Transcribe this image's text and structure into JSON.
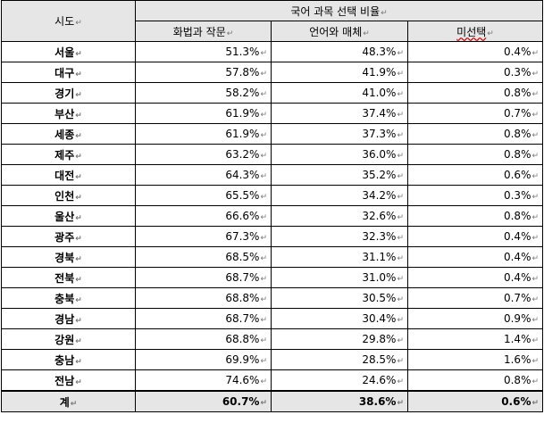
{
  "header": {
    "region": "시도",
    "group": "국어 과목 선택 비율",
    "cols": [
      "화법과 작문",
      "언어와 매체",
      "미선택"
    ]
  },
  "rows": [
    {
      "region": "서울",
      "a": "51.3%",
      "b": "48.3%",
      "c": "0.4%"
    },
    {
      "region": "대구",
      "a": "57.8%",
      "b": "41.9%",
      "c": "0.3%"
    },
    {
      "region": "경기",
      "a": "58.2%",
      "b": "41.0%",
      "c": "0.8%"
    },
    {
      "region": "부산",
      "a": "61.9%",
      "b": "37.4%",
      "c": "0.7%"
    },
    {
      "region": "세종",
      "a": "61.9%",
      "b": "37.3%",
      "c": "0.8%"
    },
    {
      "region": "제주",
      "a": "63.2%",
      "b": "36.0%",
      "c": "0.8%"
    },
    {
      "region": "대전",
      "a": "64.3%",
      "b": "35.2%",
      "c": "0.6%"
    },
    {
      "region": "인천",
      "a": "65.5%",
      "b": "34.2%",
      "c": "0.3%"
    },
    {
      "region": "울산",
      "a": "66.6%",
      "b": "32.6%",
      "c": "0.8%"
    },
    {
      "region": "광주",
      "a": "67.3%",
      "b": "32.3%",
      "c": "0.4%"
    },
    {
      "region": "경북",
      "a": "68.5%",
      "b": "31.1%",
      "c": "0.4%"
    },
    {
      "region": "전북",
      "a": "68.7%",
      "b": "31.0%",
      "c": "0.4%"
    },
    {
      "region": "충북",
      "a": "68.8%",
      "b": "30.5%",
      "c": "0.7%"
    },
    {
      "region": "경남",
      "a": "68.7%",
      "b": "30.4%",
      "c": "0.9%"
    },
    {
      "region": "강원",
      "a": "68.8%",
      "b": "29.8%",
      "c": "1.4%"
    },
    {
      "region": "충남",
      "a": "69.9%",
      "b": "28.5%",
      "c": "1.6%"
    },
    {
      "region": "전남",
      "a": "74.6%",
      "b": "24.6%",
      "c": "0.8%"
    }
  ],
  "total": {
    "region": "계",
    "a": "60.7%",
    "b": "38.6%",
    "c": "0.6%"
  },
  "paragraph_mark": "↵"
}
